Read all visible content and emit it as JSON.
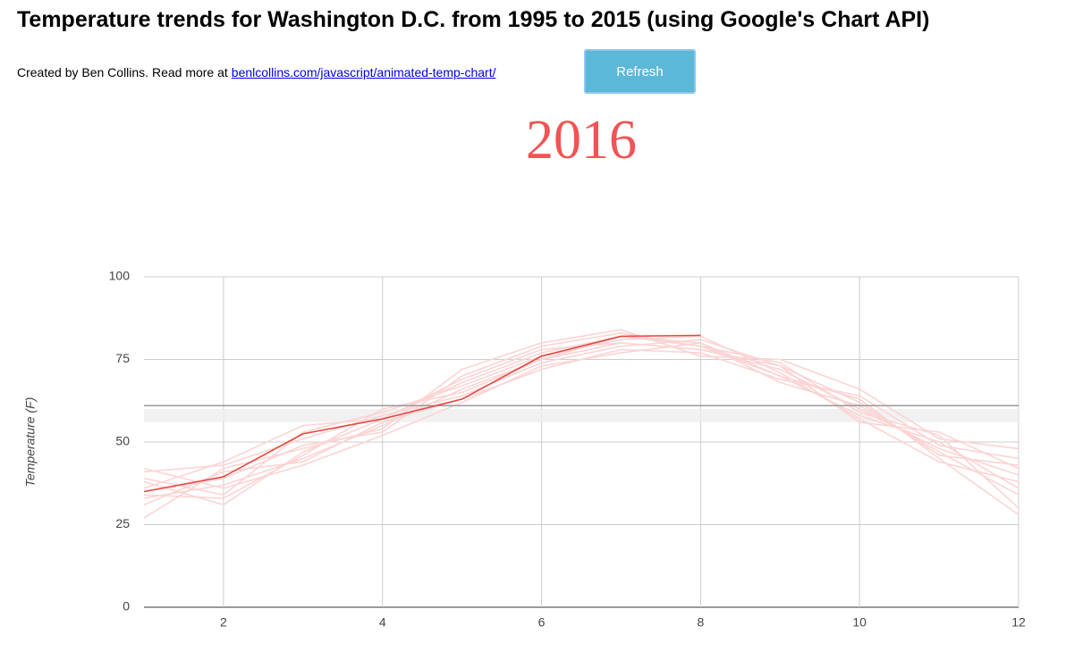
{
  "title": "Temperature trends for Washington D.C. from 1995 to 2015 (using Google's Chart API)",
  "byline": "Created by Ben Collins. Read more at",
  "link": "benlcollins.com/javascript/animated-temp-chart/",
  "button": "Refresh",
  "year": "2016",
  "chart_data": {
    "type": "line",
    "y_label": "Temperature (F)",
    "x": [
      1,
      2,
      3,
      4,
      5,
      6,
      7,
      8,
      9,
      10,
      11,
      12
    ],
    "xlim": [
      1,
      12
    ],
    "xticks": [
      2,
      4,
      6,
      8,
      10,
      12
    ],
    "ylim": [
      0,
      100
    ],
    "yticks": [
      0,
      25,
      50,
      75,
      100
    ],
    "grid": true,
    "reference_line": 61,
    "band": [
      56,
      60
    ],
    "series": [
      {
        "color": "#fbd4d4",
        "values": [
          33,
          37,
          45,
          55,
          66,
          75,
          80,
          78,
          72,
          60,
          48,
          40
        ]
      },
      {
        "color": "#fbd4d4",
        "values": [
          38,
          31,
          47,
          57,
          68,
          77,
          82,
          80,
          70,
          58,
          50,
          36
        ]
      },
      {
        "color": "#fbd4d4",
        "values": [
          41,
          43,
          51,
          58,
          64,
          74,
          79,
          81,
          73,
          62,
          46,
          43
        ]
      },
      {
        "color": "#fbd4d4",
        "values": [
          35,
          39,
          49,
          53,
          70,
          79,
          83,
          79,
          74,
          59,
          52,
          30
        ]
      },
      {
        "color": "#fbd4d4",
        "values": [
          31,
          41,
          44,
          56,
          63,
          72,
          78,
          77,
          69,
          64,
          49,
          45
        ]
      },
      {
        "color": "#fbd4d4",
        "values": [
          39,
          34,
          53,
          59,
          67,
          76,
          81,
          82,
          71,
          57,
          44,
          38
        ]
      },
      {
        "color": "#fbd4d4",
        "values": [
          27,
          42,
          48,
          54,
          72,
          80,
          84,
          76,
          75,
          66,
          51,
          48
        ]
      },
      {
        "color": "#fbd4d4",
        "values": [
          42,
          36,
          43,
          52,
          62,
          73,
          77,
          80,
          68,
          61,
          47,
          34
        ]
      },
      {
        "color": "#fbd4d4",
        "values": [
          36,
          44,
          55,
          57,
          69,
          78,
          80,
          78,
          73,
          56,
          53,
          42
        ]
      },
      {
        "color": "#fbd4d4",
        "values": [
          34,
          33,
          46,
          60,
          65,
          75,
          82,
          79,
          70,
          63,
          45,
          28
        ]
      },
      {
        "color": "#e8453c",
        "values": [
          35,
          39.5,
          52.5,
          57,
          63,
          76,
          82,
          82.3,
          null,
          null,
          null,
          null
        ]
      }
    ]
  }
}
